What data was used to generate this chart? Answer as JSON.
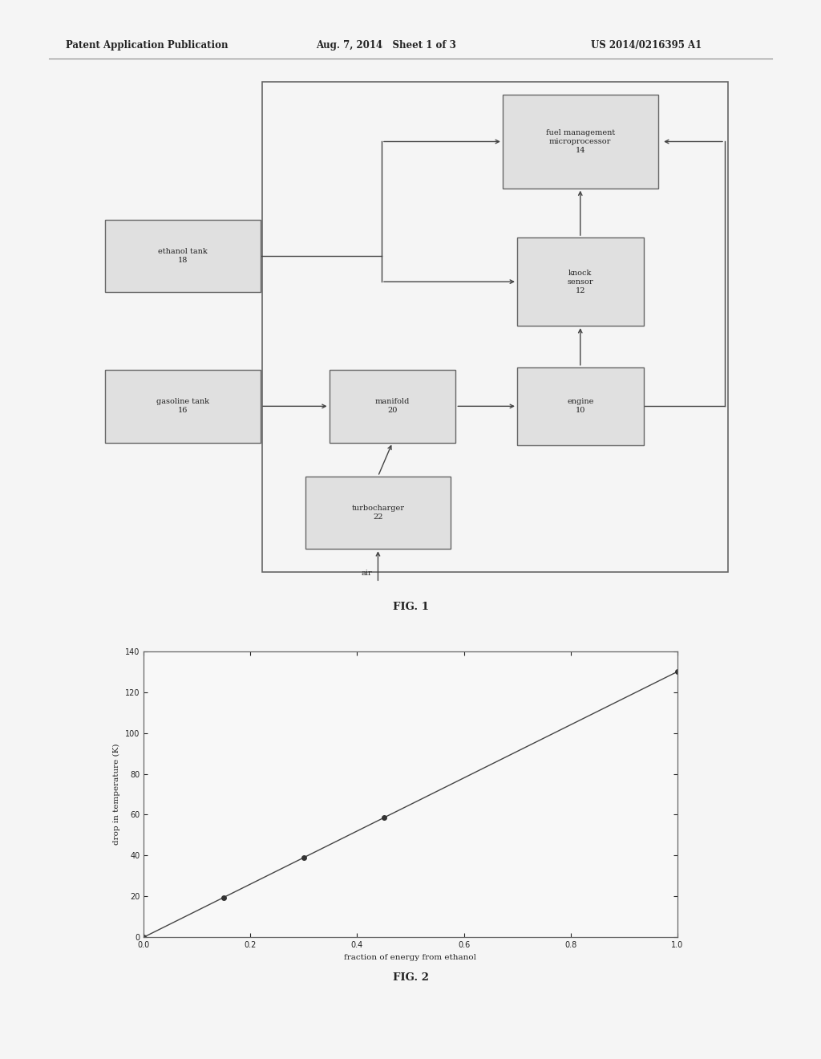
{
  "header_left": "Patent Application Publication",
  "header_mid": "Aug. 7, 2014   Sheet 1 of 3",
  "header_right": "US 2014/0216395 A1",
  "fig1_label": "FIG. 1",
  "fig2_label": "FIG. 2",
  "plot2": {
    "x": [
      0.0,
      0.15,
      0.3,
      0.45,
      1.0
    ],
    "y": [
      0.0,
      19.5,
      39.0,
      58.5,
      130.0
    ],
    "xlabel": "fraction of energy from ethanol",
    "ylabel": "drop in temperature (K)",
    "xlim": [
      0.0,
      1.0
    ],
    "ylim": [
      0,
      140
    ],
    "xticks": [
      0.0,
      0.2,
      0.4,
      0.6,
      0.8,
      1.0
    ],
    "yticks": [
      0,
      20,
      40,
      60,
      80,
      100,
      120,
      140
    ],
    "color": "#444444",
    "marker": "o",
    "markersize": 4,
    "linewidth": 1.0
  },
  "bg_color": "#f5f5f5",
  "box_facecolor": "#e0e0e0",
  "box_edgecolor": "#666666",
  "arrow_color": "#444444",
  "text_color": "#222222",
  "font_size_box": 7.0,
  "font_size_header": 8.5,
  "font_size_figlabel": 9.5
}
